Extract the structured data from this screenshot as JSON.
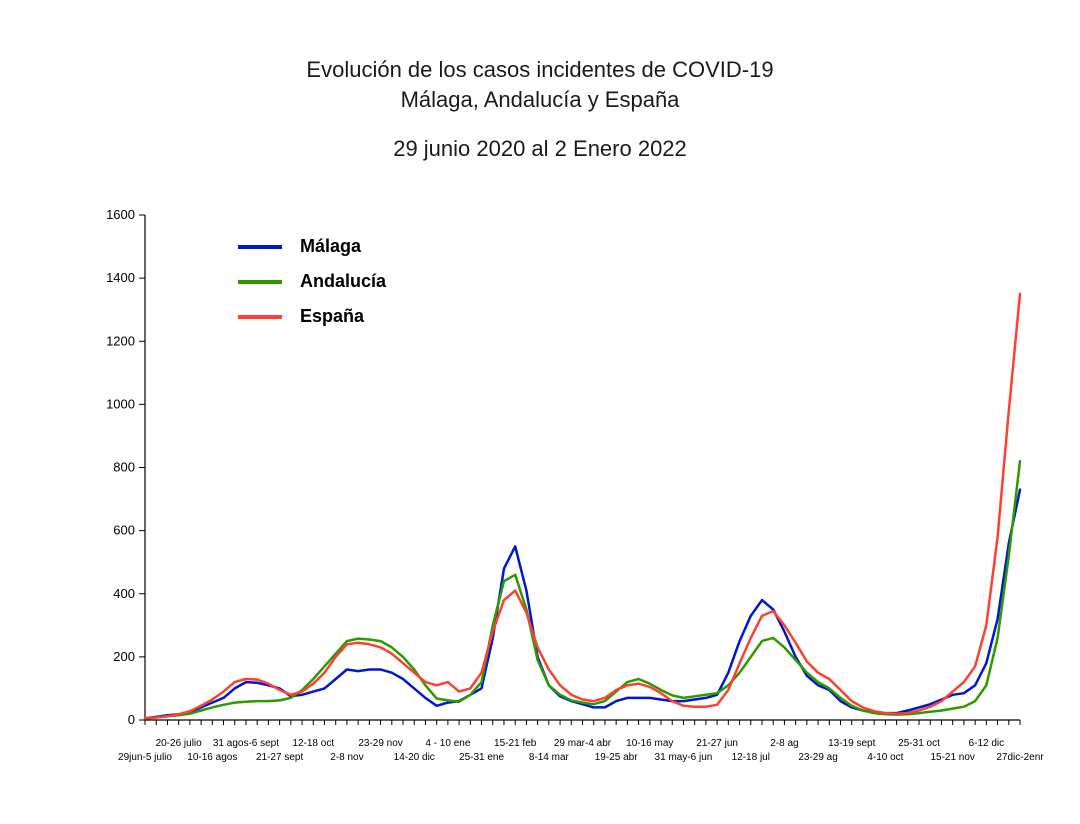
{
  "title": {
    "line1": "Evolución de los casos incidentes de COVID-19",
    "line2": "Málaga, Andalucía y España",
    "line3": "29  junio 2020 al  2 Enero 2022",
    "fontsize": 22,
    "color": "#1a1a1a"
  },
  "chart": {
    "type": "line",
    "background_color": "#ffffff",
    "axis_color": "#000000",
    "ylim": [
      0,
      1600
    ],
    "ytick_step": 200,
    "yticks": [
      0,
      200,
      400,
      600,
      800,
      1000,
      1200,
      1400,
      1600
    ],
    "ytick_fontsize": 13,
    "line_width": 2.5,
    "series": [
      {
        "name": "Málaga",
        "color": "#0018cc",
        "values": [
          5,
          10,
          15,
          18,
          25,
          40,
          55,
          70,
          100,
          120,
          118,
          110,
          100,
          75,
          80,
          90,
          100,
          130,
          160,
          155,
          160,
          160,
          150,
          130,
          100,
          70,
          45,
          55,
          60,
          80,
          100,
          260,
          480,
          550,
          410,
          200,
          110,
          75,
          60,
          50,
          40,
          40,
          60,
          70,
          70,
          70,
          65,
          60,
          60,
          65,
          70,
          80,
          150,
          250,
          330,
          380,
          350,
          280,
          200,
          140,
          110,
          95,
          60,
          40,
          30,
          25,
          22,
          22,
          30,
          40,
          50,
          65,
          80,
          85,
          110,
          180,
          320,
          560,
          730
        ]
      },
      {
        "name": "Andalucía",
        "color": "#2b9b00",
        "values": [
          5,
          8,
          12,
          15,
          20,
          30,
          40,
          48,
          55,
          58,
          60,
          60,
          62,
          70,
          95,
          130,
          170,
          210,
          250,
          258,
          255,
          250,
          230,
          200,
          160,
          110,
          68,
          62,
          58,
          80,
          120,
          300,
          440,
          460,
          350,
          190,
          110,
          80,
          62,
          55,
          50,
          60,
          90,
          120,
          130,
          115,
          95,
          78,
          70,
          75,
          80,
          85,
          110,
          150,
          200,
          250,
          260,
          230,
          190,
          150,
          120,
          100,
          70,
          45,
          30,
          22,
          18,
          17,
          18,
          22,
          26,
          30,
          36,
          42,
          60,
          110,
          260,
          520,
          820
        ]
      },
      {
        "name": "España",
        "color": "#ff4030",
        "values": [
          5,
          8,
          12,
          18,
          28,
          45,
          65,
          90,
          120,
          130,
          128,
          115,
          95,
          80,
          90,
          115,
          150,
          200,
          240,
          245,
          240,
          230,
          210,
          180,
          150,
          120,
          110,
          120,
          90,
          100,
          150,
          280,
          380,
          410,
          340,
          230,
          160,
          110,
          80,
          65,
          60,
          70,
          95,
          110,
          115,
          105,
          85,
          60,
          45,
          42,
          42,
          48,
          95,
          180,
          260,
          330,
          345,
          300,
          245,
          185,
          150,
          130,
          95,
          60,
          40,
          28,
          22,
          20,
          22,
          30,
          42,
          60,
          90,
          120,
          170,
          300,
          580,
          980,
          1350
        ]
      }
    ],
    "x_labels_row1": [
      {
        "idx": 3,
        "text": "20-26 julio"
      },
      {
        "idx": 9,
        "text": "31 agos-6 sept"
      },
      {
        "idx": 15,
        "text": "12-18 oct"
      },
      {
        "idx": 21,
        "text": "23-29 nov"
      },
      {
        "idx": 27,
        "text": "4 - 10 ene"
      },
      {
        "idx": 33,
        "text": "15-21 feb"
      },
      {
        "idx": 39,
        "text": "29 mar-4 abr"
      },
      {
        "idx": 45,
        "text": "10-16 may"
      },
      {
        "idx": 51,
        "text": "21-27 jun"
      },
      {
        "idx": 57,
        "text": "2-8 ag"
      },
      {
        "idx": 63,
        "text": "13-19 sept"
      },
      {
        "idx": 69,
        "text": "25-31 oct"
      },
      {
        "idx": 75,
        "text": "6-12 dic"
      }
    ],
    "x_labels_row2": [
      {
        "idx": 0,
        "text": "29jun-5 julio"
      },
      {
        "idx": 6,
        "text": "10-16 agos"
      },
      {
        "idx": 12,
        "text": "21-27 sept"
      },
      {
        "idx": 18,
        "text": "2-8 nov"
      },
      {
        "idx": 24,
        "text": "14-20 dic"
      },
      {
        "idx": 30,
        "text": "25-31 ene"
      },
      {
        "idx": 36,
        "text": "8-14 mar"
      },
      {
        "idx": 42,
        "text": "19-25 abr"
      },
      {
        "idx": 48,
        "text": "31 may-6 jun"
      },
      {
        "idx": 54,
        "text": "12-18 jul"
      },
      {
        "idx": 60,
        "text": "23-29 ag"
      },
      {
        "idx": 66,
        "text": "4-10 oct"
      },
      {
        "idx": 72,
        "text": "15-21 nov"
      },
      {
        "idx": 78,
        "text": "27dic-2enr"
      }
    ],
    "n_points": 79,
    "xlabel_fontsize": 10
  },
  "legend": {
    "items": [
      {
        "label": "Málaga",
        "color": "#0018cc"
      },
      {
        "label": "Andalucía",
        "color": "#2b9b00"
      },
      {
        "label": "España",
        "color": "#ff4030"
      }
    ],
    "fontsize": 18,
    "font_weight": "bold"
  }
}
